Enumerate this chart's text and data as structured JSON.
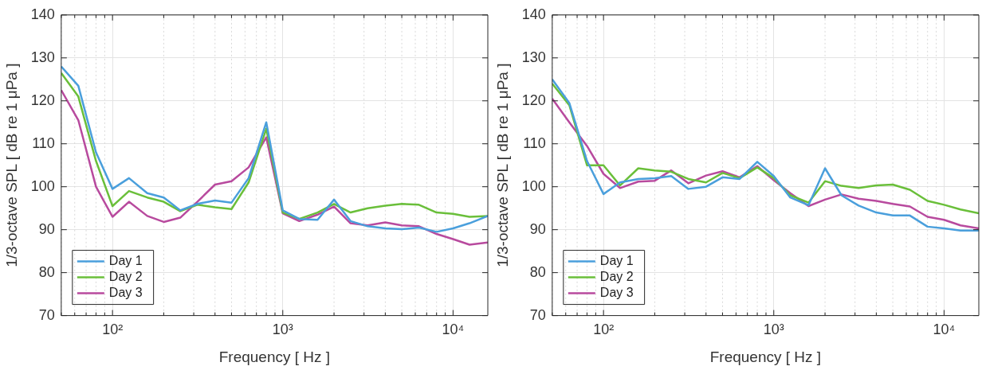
{
  "chart_data": [
    {
      "type": "line",
      "xlabel": "Frequency [ Hz ]",
      "ylabel": "1/3-octave SPL [ dB re 1 μPa ]",
      "log": "x",
      "grid": true,
      "legend": "bottom left",
      "marker": "none",
      "line_style": "solid",
      "x": [
        50,
        63,
        80,
        100,
        125,
        160,
        200,
        250,
        315,
        400,
        500,
        630,
        800,
        1000,
        1250,
        1600,
        2000,
        2500,
        3150,
        4000,
        5000,
        6300,
        8000,
        10000,
        12500,
        16000
      ],
      "xlim": [
        50,
        16000
      ],
      "xticks": [
        {
          "value": 100,
          "label": "10²"
        },
        {
          "value": 1000,
          "label": "10³"
        },
        {
          "value": 10000,
          "label": "10⁴"
        }
      ],
      "ylim": [
        70,
        140
      ],
      "yticks": [
        70,
        80,
        90,
        100,
        110,
        120,
        130,
        140
      ],
      "series": [
        {
          "name": "Day 1",
          "color": "#4a9fdc",
          "values": [
            128,
            123.5,
            108,
            99.5,
            102,
            98.5,
            97.5,
            94.5,
            96,
            96.8,
            96.3,
            102,
            115,
            94.5,
            92.5,
            92.3,
            97,
            92,
            90.8,
            90.3,
            90.1,
            90.5,
            89.5,
            90.3,
            91.5,
            93.2
          ]
        },
        {
          "name": "Day 2",
          "color": "#6abf3a",
          "values": [
            126.5,
            121,
            106,
            95.5,
            99,
            97.5,
            96.5,
            94.3,
            95.8,
            95.2,
            94.8,
            101,
            113.5,
            94,
            92.5,
            94,
            96,
            94,
            95,
            95.6,
            96,
            95.8,
            94,
            93.7,
            93,
            93.2
          ]
        },
        {
          "name": "Day 3",
          "color": "#b84a9e",
          "values": [
            122.5,
            115.5,
            100,
            93,
            96.5,
            93.2,
            91.8,
            92.8,
            96.5,
            100.5,
            101.3,
            104.5,
            111.5,
            93.8,
            92,
            93.5,
            95.4,
            91.5,
            91,
            91.7,
            91,
            90.8,
            89,
            87.8,
            86.5,
            87
          ]
        }
      ]
    },
    {
      "type": "line",
      "xlabel": "Frequency [ Hz ]",
      "ylabel": "1/3-octave SPL [ dB re 1 μPa ]",
      "log": "x",
      "grid": true,
      "legend": "bottom left",
      "marker": "none",
      "line_style": "solid",
      "x": [
        50,
        63,
        80,
        100,
        125,
        160,
        200,
        250,
        315,
        400,
        500,
        630,
        800,
        1000,
        1250,
        1600,
        2000,
        2500,
        3150,
        4000,
        5000,
        6300,
        8000,
        10000,
        12500,
        16000
      ],
      "xlim": [
        50,
        16000
      ],
      "xticks": [
        {
          "value": 100,
          "label": "10²"
        },
        {
          "value": 1000,
          "label": "10³"
        },
        {
          "value": 10000,
          "label": "10⁴"
        }
      ],
      "ylim": [
        70,
        140
      ],
      "yticks": [
        70,
        80,
        90,
        100,
        110,
        120,
        130,
        140
      ],
      "series": [
        {
          "name": "Day 1",
          "color": "#4a9fdc",
          "values": [
            125,
            119.5,
            106,
            98.3,
            101,
            101.8,
            102,
            102.5,
            99.5,
            100,
            102.2,
            101.8,
            105.8,
            102.5,
            97.5,
            95.7,
            104.3,
            98,
            95.6,
            94,
            93.3,
            93.3,
            90.7,
            90.3,
            89.8,
            89.8
          ]
        },
        {
          "name": "Day 2",
          "color": "#6abf3a",
          "values": [
            124,
            119,
            105,
            105,
            100.3,
            104.3,
            103.8,
            103.5,
            101.8,
            101,
            103.2,
            102,
            104.5,
            102,
            98,
            96.3,
            101.3,
            100.2,
            99.7,
            100.3,
            100.5,
            99.3,
            96.7,
            95.8,
            94.7,
            93.8
          ]
        },
        {
          "name": "Day 3",
          "color": "#b84a9e",
          "values": [
            120.5,
            115,
            109.5,
            103,
            99.7,
            101.2,
            101.4,
            103.8,
            100.8,
            102.6,
            103.6,
            102.2,
            104.8,
            101.5,
            98.5,
            95.5,
            97,
            98.2,
            97.2,
            96.7,
            96,
            95.4,
            93,
            92.3,
            91,
            90.3
          ]
        }
      ]
    }
  ]
}
